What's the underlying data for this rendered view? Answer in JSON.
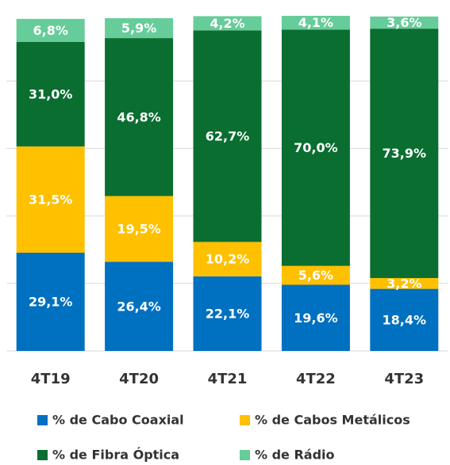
{
  "chart_data": {
    "type": "stacked_bar",
    "categories": [
      "4T19",
      "4T20",
      "4T21",
      "4T22",
      "4T23"
    ],
    "series": [
      {
        "name": "% de Cabo Coaxial",
        "color": "#0070c0",
        "values": [
          29.1,
          26.4,
          22.1,
          19.6,
          18.4
        ],
        "value_labels": [
          "29,1%",
          "26,4%",
          "22,1%",
          "19,6%",
          "18,4%"
        ]
      },
      {
        "name": "% de Cabos Metálicos",
        "color": "#ffc000",
        "values": [
          31.5,
          19.5,
          10.2,
          5.6,
          3.2
        ],
        "value_labels": [
          "31,5%",
          "19,5%",
          "10,2%",
          "5,6%",
          "3,2%"
        ]
      },
      {
        "name": "% de Fibra Óptica",
        "color": "#0a6e31",
        "values": [
          31.0,
          46.8,
          62.7,
          70.0,
          73.9
        ],
        "value_labels": [
          "31,0%",
          "46,8%",
          "62,7%",
          "70,0%",
          "73,9%"
        ]
      },
      {
        "name": "% de Rádio",
        "color": "#66cc99",
        "values": [
          6.8,
          5.9,
          4.2,
          4.1,
          3.6
        ],
        "value_labels": [
          "6,8%",
          "5,9%",
          "4,2%",
          "4,1%",
          "3,6%"
        ]
      }
    ],
    "ylim": [
      0,
      100
    ],
    "yticks": [
      0,
      20,
      40,
      60,
      80,
      100
    ],
    "grid": true,
    "legend": "bottom"
  }
}
